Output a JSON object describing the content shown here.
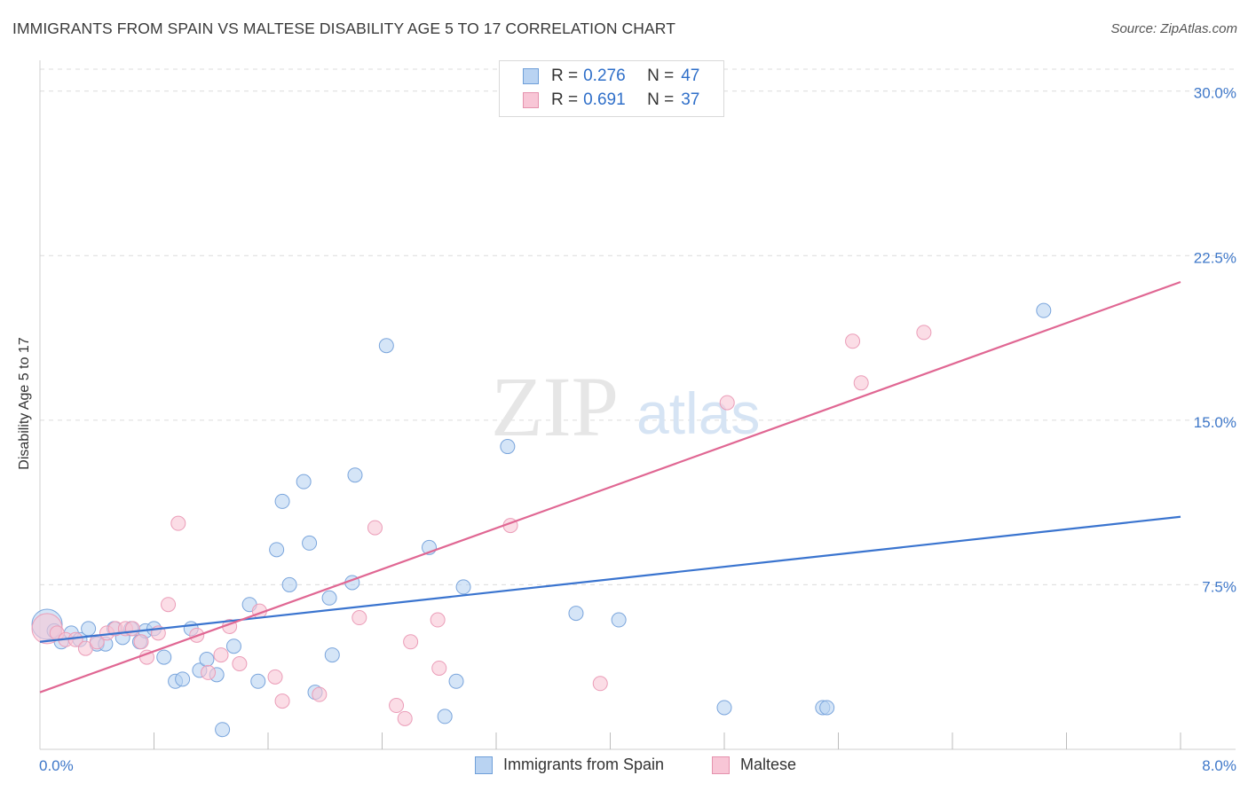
{
  "title": "IMMIGRANTS FROM SPAIN VS MALTESE DISABILITY AGE 5 TO 17 CORRELATION CHART",
  "source": "Source: ZipAtlas.com",
  "watermark": {
    "part1": "ZIP",
    "part2": "atlas"
  },
  "legend": {
    "r_label": "R =",
    "n_label": "N =",
    "rows": [
      {
        "r": "0.276",
        "n": "47",
        "fill": "#b9d3f2",
        "stroke": "#6f9fd8"
      },
      {
        "r": "0.691",
        "n": "37",
        "fill": "#f8c6d6",
        "stroke": "#e592ad"
      }
    ]
  },
  "bottom_legend": [
    {
      "label": "Immigrants from Spain",
      "fill": "#b9d3f2",
      "stroke": "#6f9fd8"
    },
    {
      "label": "Maltese",
      "fill": "#f8c6d6",
      "stroke": "#e592ad"
    }
  ],
  "colors": {
    "blue": "#3a74cf",
    "pink": "#e06793",
    "blue_point": "#b9d3f2",
    "pink_point": "#f8c6d6",
    "blue_edge": "#7aa5dc",
    "pink_edge": "#eb9db8",
    "grid": "#dcdcdc",
    "tick_text": "#3f78c9"
  },
  "chart_data": {
    "type": "scatter",
    "title": "IMMIGRANTS FROM SPAIN VS MALTESE DISABILITY AGE 5 TO 17 CORRELATION CHART",
    "xlabel": "",
    "ylabel": "Disability Age 5 to 17",
    "xlim": [
      0,
      8
    ],
    "ylim": [
      0,
      31
    ],
    "x_tick_labels": [
      {
        "value": 0,
        "label": "0.0%"
      },
      {
        "value": 8,
        "label": "8.0%"
      }
    ],
    "y_tick_labels": [
      {
        "value": 7.5,
        "label": "7.5%"
      },
      {
        "value": 15,
        "label": "15.0%"
      },
      {
        "value": 22.5,
        "label": "22.5%"
      },
      {
        "value": 30,
        "label": "30.0%"
      }
    ],
    "series": [
      {
        "name": "Immigrants from Spain",
        "R": 0.276,
        "N": 47,
        "trend": {
          "x": [
            0,
            8
          ],
          "y": [
            4.9,
            10.6
          ]
        },
        "points": [
          {
            "x": 0.05,
            "y": 5.7,
            "big": true
          },
          {
            "x": 0.1,
            "y": 5.4
          },
          {
            "x": 0.15,
            "y": 4.9
          },
          {
            "x": 0.22,
            "y": 5.3
          },
          {
            "x": 0.28,
            "y": 5.0
          },
          {
            "x": 0.34,
            "y": 5.5
          },
          {
            "x": 0.4,
            "y": 4.8
          },
          {
            "x": 0.46,
            "y": 4.8
          },
          {
            "x": 0.52,
            "y": 5.5
          },
          {
            "x": 0.58,
            "y": 5.1
          },
          {
            "x": 0.64,
            "y": 5.5
          },
          {
            "x": 0.7,
            "y": 4.9
          },
          {
            "x": 0.74,
            "y": 5.4
          },
          {
            "x": 0.8,
            "y": 5.5
          },
          {
            "x": 0.87,
            "y": 4.2
          },
          {
            "x": 0.95,
            "y": 3.1
          },
          {
            "x": 1.0,
            "y": 3.2
          },
          {
            "x": 1.06,
            "y": 5.5
          },
          {
            "x": 1.12,
            "y": 3.6
          },
          {
            "x": 1.17,
            "y": 4.1
          },
          {
            "x": 1.24,
            "y": 3.4
          },
          {
            "x": 1.28,
            "y": 0.9
          },
          {
            "x": 1.36,
            "y": 4.7
          },
          {
            "x": 1.47,
            "y": 6.6
          },
          {
            "x": 1.53,
            "y": 3.1
          },
          {
            "x": 1.66,
            "y": 9.1
          },
          {
            "x": 1.7,
            "y": 11.3
          },
          {
            "x": 1.75,
            "y": 7.5
          },
          {
            "x": 1.85,
            "y": 12.2
          },
          {
            "x": 1.89,
            "y": 9.4
          },
          {
            "x": 1.93,
            "y": 2.6
          },
          {
            "x": 2.03,
            "y": 6.9
          },
          {
            "x": 2.05,
            "y": 4.3
          },
          {
            "x": 2.19,
            "y": 7.6
          },
          {
            "x": 2.21,
            "y": 12.5
          },
          {
            "x": 2.43,
            "y": 18.4
          },
          {
            "x": 2.73,
            "y": 9.2
          },
          {
            "x": 2.84,
            "y": 1.5
          },
          {
            "x": 2.92,
            "y": 3.1
          },
          {
            "x": 2.97,
            "y": 7.4
          },
          {
            "x": 3.28,
            "y": 13.8
          },
          {
            "x": 3.76,
            "y": 6.2
          },
          {
            "x": 4.06,
            "y": 5.9
          },
          {
            "x": 4.8,
            "y": 1.9
          },
          {
            "x": 5.49,
            "y": 1.9
          },
          {
            "x": 5.52,
            "y": 1.9
          },
          {
            "x": 7.04,
            "y": 20.0
          }
        ]
      },
      {
        "name": "Maltese",
        "R": 0.691,
        "N": 37,
        "trend": {
          "x": [
            0,
            8
          ],
          "y": [
            2.6,
            21.3
          ]
        },
        "points": [
          {
            "x": 0.05,
            "y": 5.5,
            "big": true
          },
          {
            "x": 0.12,
            "y": 5.3
          },
          {
            "x": 0.18,
            "y": 5.0
          },
          {
            "x": 0.25,
            "y": 5.0
          },
          {
            "x": 0.32,
            "y": 4.6
          },
          {
            "x": 0.4,
            "y": 4.9
          },
          {
            "x": 0.47,
            "y": 5.3
          },
          {
            "x": 0.53,
            "y": 5.5
          },
          {
            "x": 0.6,
            "y": 5.5
          },
          {
            "x": 0.65,
            "y": 5.5
          },
          {
            "x": 0.71,
            "y": 4.9
          },
          {
            "x": 0.75,
            "y": 4.2
          },
          {
            "x": 0.83,
            "y": 5.3
          },
          {
            "x": 0.9,
            "y": 6.6
          },
          {
            "x": 0.97,
            "y": 10.3
          },
          {
            "x": 1.1,
            "y": 5.2
          },
          {
            "x": 1.18,
            "y": 3.5
          },
          {
            "x": 1.27,
            "y": 4.3
          },
          {
            "x": 1.33,
            "y": 5.6
          },
          {
            "x": 1.4,
            "y": 3.9
          },
          {
            "x": 1.54,
            "y": 6.3
          },
          {
            "x": 1.65,
            "y": 3.3
          },
          {
            "x": 1.7,
            "y": 2.2
          },
          {
            "x": 1.96,
            "y": 2.5
          },
          {
            "x": 2.24,
            "y": 6.0
          },
          {
            "x": 2.35,
            "y": 10.1
          },
          {
            "x": 2.5,
            "y": 2.0
          },
          {
            "x": 2.56,
            "y": 1.4
          },
          {
            "x": 2.6,
            "y": 4.9
          },
          {
            "x": 2.79,
            "y": 5.9
          },
          {
            "x": 2.8,
            "y": 3.7
          },
          {
            "x": 3.3,
            "y": 10.2
          },
          {
            "x": 3.93,
            "y": 3.0
          },
          {
            "x": 4.82,
            "y": 15.8
          },
          {
            "x": 5.7,
            "y": 18.6
          },
          {
            "x": 5.76,
            "y": 16.7
          },
          {
            "x": 6.2,
            "y": 19.0
          }
        ]
      }
    ]
  }
}
